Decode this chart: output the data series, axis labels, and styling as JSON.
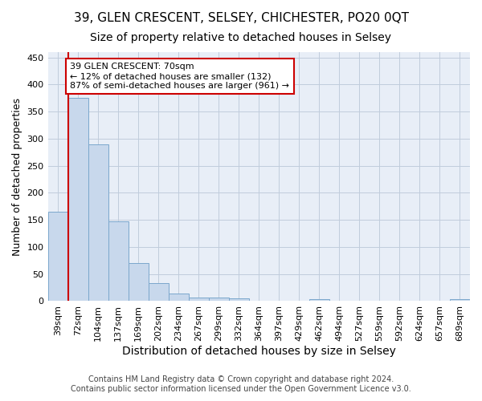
{
  "title1": "39, GLEN CRESCENT, SELSEY, CHICHESTER, PO20 0QT",
  "title2": "Size of property relative to detached houses in Selsey",
  "xlabel": "Distribution of detached houses by size in Selsey",
  "ylabel": "Number of detached properties",
  "footnote": "Contains HM Land Registry data © Crown copyright and database right 2024.\nContains public sector information licensed under the Open Government Licence v3.0.",
  "bin_labels": [
    "39sqm",
    "72sqm",
    "104sqm",
    "137sqm",
    "169sqm",
    "202sqm",
    "234sqm",
    "267sqm",
    "299sqm",
    "332sqm",
    "364sqm",
    "397sqm",
    "429sqm",
    "462sqm",
    "494sqm",
    "527sqm",
    "559sqm",
    "592sqm",
    "624sqm",
    "657sqm",
    "689sqm"
  ],
  "bar_heights": [
    165,
    375,
    290,
    147,
    70,
    33,
    14,
    7,
    6,
    5,
    0,
    0,
    0,
    4,
    0,
    0,
    0,
    0,
    0,
    0,
    4
  ],
  "bar_color": "#c8d8ec",
  "bar_edge_color": "#7ba7cc",
  "plot_bg_color": "#e8eef7",
  "fig_bg_color": "#ffffff",
  "grid_color": "#c0ccdc",
  "ylim": [
    0,
    460
  ],
  "yticks": [
    0,
    50,
    100,
    150,
    200,
    250,
    300,
    350,
    400,
    450
  ],
  "vline_color": "#cc0000",
  "annotation_text": "39 GLEN CRESCENT: 70sqm\n← 12% of detached houses are smaller (132)\n87% of semi-detached houses are larger (961) →",
  "annotation_box_facecolor": "#ffffff",
  "annotation_box_edgecolor": "#cc0000",
  "title1_fontsize": 11,
  "title2_fontsize": 10,
  "xlabel_fontsize": 10,
  "ylabel_fontsize": 9,
  "tick_fontsize": 8,
  "annot_fontsize": 8,
  "footnote_fontsize": 7
}
